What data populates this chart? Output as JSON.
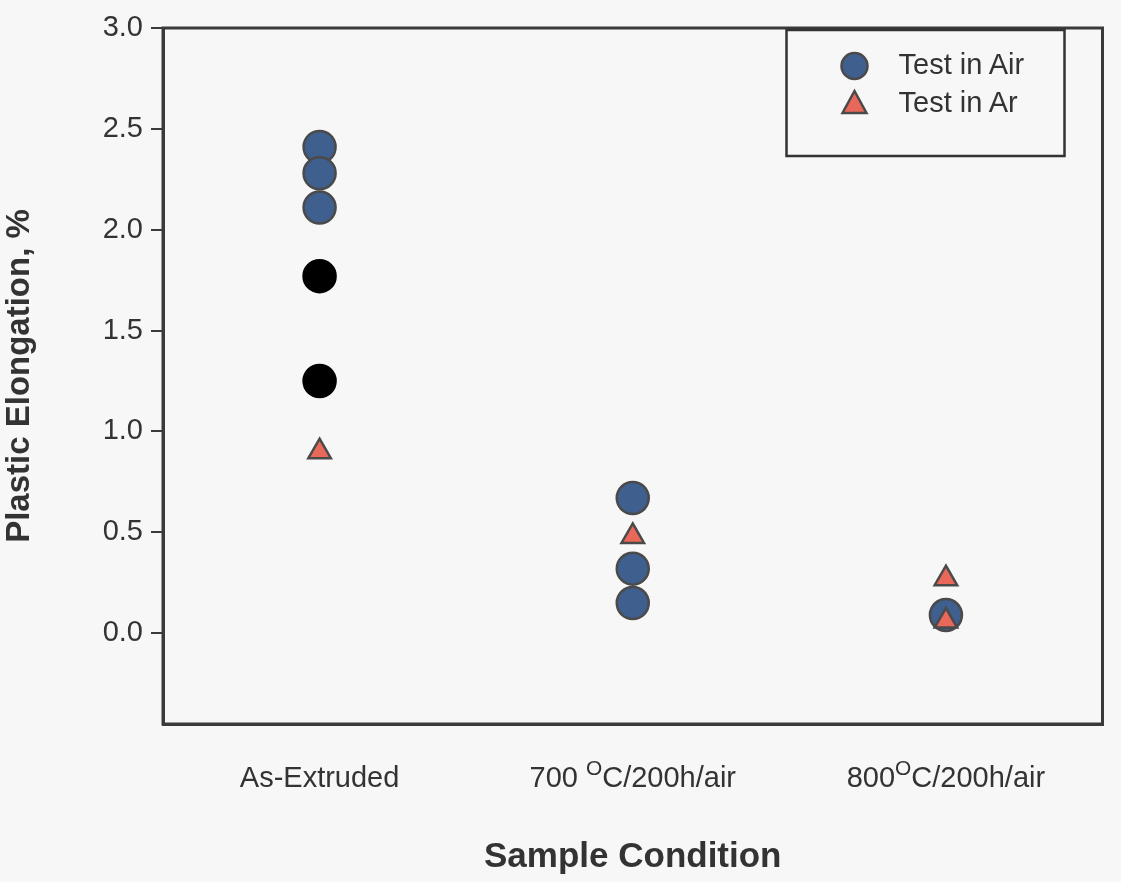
{
  "chart_data": {
    "type": "scatter",
    "xlabel": "Sample Condition",
    "ylabel": "Plastic Elongation, %",
    "categories": [
      "As-Extruded",
      "700 $^{O}$C/200h/air",
      "800$^{O}$C/200h/air"
    ],
    "ylim": [
      -0.45,
      3.0
    ],
    "yticks": [
      {
        "value": 0,
        "label": "0.0"
      },
      {
        "value": 0.5,
        "label": "0.5"
      },
      {
        "value": 1,
        "label": "1.0"
      },
      {
        "value": 1.5,
        "label": "1.5"
      },
      {
        "value": 2,
        "label": "2.0"
      },
      {
        "value": 2.5,
        "label": "2.5"
      },
      {
        "value": 3,
        "label": "3.0"
      }
    ],
    "grid": false,
    "legend": "top right",
    "series": [
      {
        "name": "Test in Air",
        "color": "#3f5f8f",
        "marker": "circle",
        "x": [
          "As-Extruded",
          "As-Extruded",
          "As-Extruded",
          "700 $^{O}$C/200h/air",
          "700 $^{O}$C/200h/air",
          "700 $^{O}$C/200h/air",
          "800$^{O}$C/200h/air"
        ],
        "values": [
          2.41,
          2.28,
          2.11,
          0.67,
          0.32,
          0.15,
          0.09
        ]
      },
      {
        "color": "#000000",
        "marker": "circle",
        "x": [
          "As-Extruded",
          "As-Extruded"
        ],
        "values": [
          1.77,
          1.25
        ]
      },
      {
        "name": "Test in Ar",
        "color": "#e8685a",
        "marker": "triangle",
        "x": [
          "As-Extruded",
          "700 $^{O}$C/200h/air",
          "800$^{O}$C/200h/air",
          "800$^{O}$C/200h/air"
        ],
        "values": [
          0.9,
          0.48,
          0.27,
          0.06
        ]
      }
    ]
  }
}
